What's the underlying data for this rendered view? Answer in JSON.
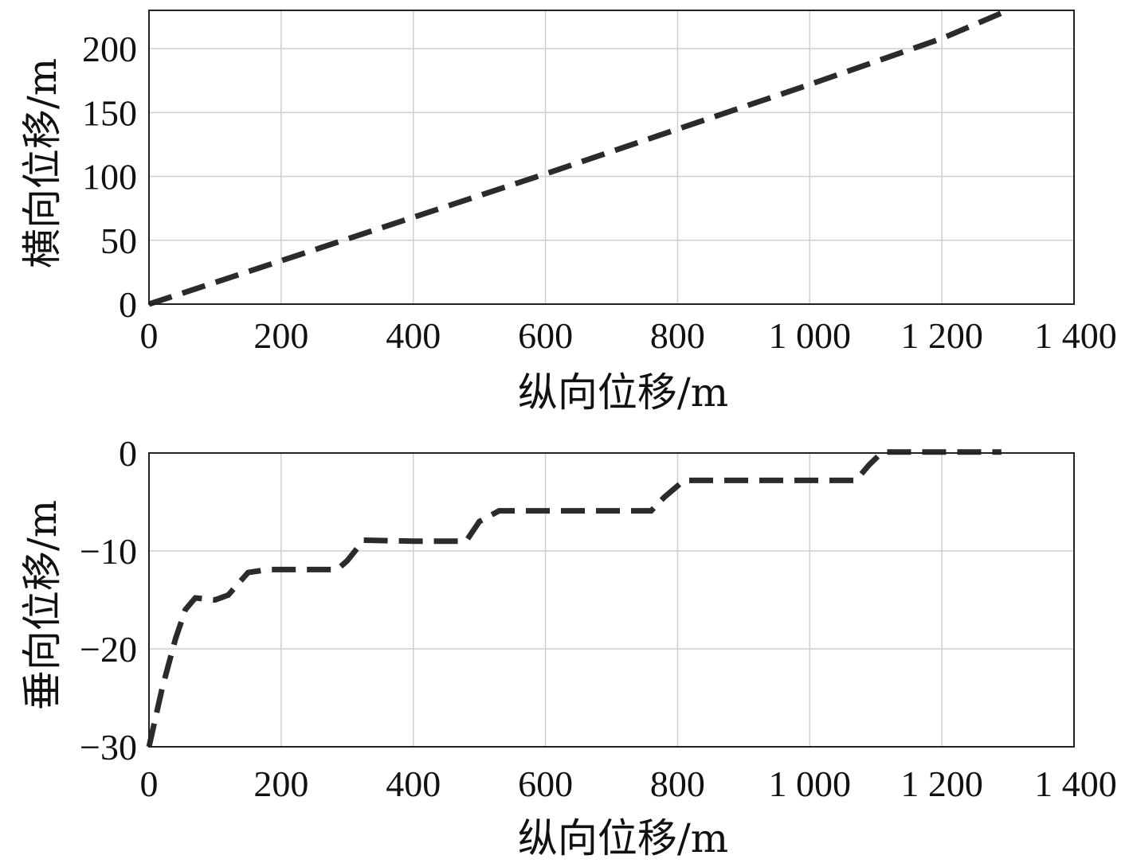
{
  "chart_data": [
    {
      "type": "line",
      "xlabel": "纵向位移/m",
      "ylabel": "横向位移/m",
      "xlim": [
        0,
        1400
      ],
      "ylim": [
        0,
        230
      ],
      "x_ticks": [
        0,
        200,
        400,
        600,
        800,
        1000,
        1200,
        1400
      ],
      "x_tick_labels": [
        "0",
        "200",
        "400",
        "600",
        "800",
        "1 000",
        "1 200",
        "1 400"
      ],
      "y_ticks": [
        0,
        50,
        100,
        150,
        200
      ],
      "y_tick_labels": [
        "0",
        "50",
        "100",
        "150",
        "200"
      ],
      "grid": true,
      "series": [
        {
          "x": [
            0,
            200,
            400,
            600,
            800,
            1000,
            1200,
            1300
          ],
          "y": [
            0,
            34,
            68,
            102,
            137,
            172,
            208,
            230
          ]
        }
      ]
    },
    {
      "type": "line",
      "xlabel": "纵向位移/m",
      "ylabel": "垂向位移/m",
      "xlim": [
        0,
        1400
      ],
      "ylim": [
        -30,
        0
      ],
      "x_ticks": [
        0,
        200,
        400,
        600,
        800,
        1000,
        1200,
        1400
      ],
      "x_tick_labels": [
        "0",
        "200",
        "400",
        "600",
        "800",
        "1 000",
        "1 200",
        "1 400"
      ],
      "y_ticks": [
        0,
        -10,
        -20,
        -30
      ],
      "y_tick_labels": [
        "0",
        "−10",
        "−20",
        "−30"
      ],
      "grid": true,
      "series": [
        {
          "x": [
            0,
            20,
            40,
            55,
            70,
            100,
            120,
            150,
            180,
            240,
            285,
            300,
            325,
            400,
            480,
            500,
            530,
            600,
            760,
            780,
            810,
            900,
            1070,
            1090,
            1110,
            1200,
            1290
          ],
          "y": [
            -30,
            -24,
            -19,
            -16,
            -14.8,
            -15,
            -14.5,
            -12.2,
            -11.9,
            -11.9,
            -11.9,
            -11,
            -8.9,
            -9,
            -9,
            -7,
            -5.9,
            -5.9,
            -5.9,
            -4.5,
            -2.8,
            -2.8,
            -2.8,
            -1.2,
            0.1,
            0.1,
            0.1
          ]
        }
      ]
    }
  ]
}
